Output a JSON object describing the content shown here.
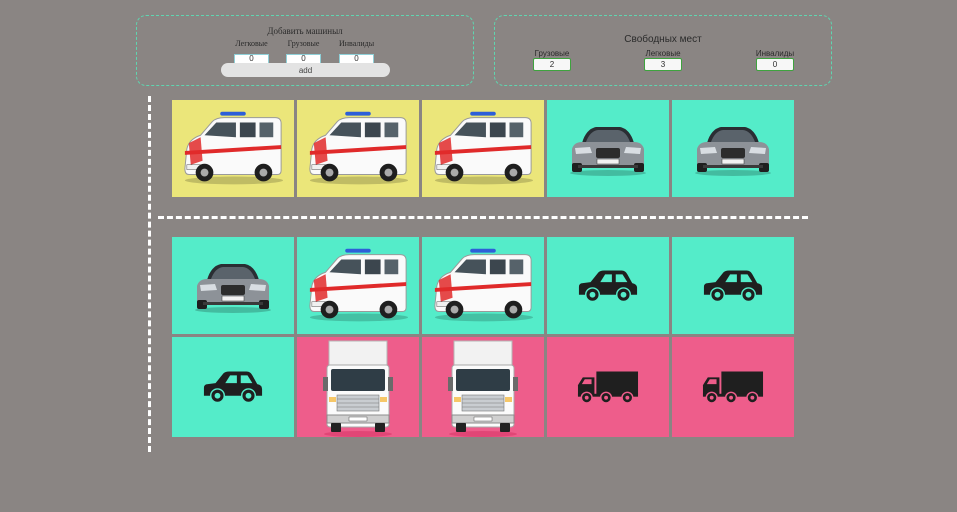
{
  "add_panel": {
    "title": "Добавить машиныл",
    "fields": [
      {
        "label": "Легковые",
        "value": "0"
      },
      {
        "label": "Грузовые",
        "value": "0"
      },
      {
        "label": "Инвалиды",
        "value": "0"
      }
    ],
    "add_label": "add"
  },
  "free_panel": {
    "title": "Свободных мест",
    "stats": [
      {
        "label": "Грузовые",
        "value": "2"
      },
      {
        "label": "Легковые",
        "value": "3"
      },
      {
        "label": "Инвалиды",
        "value": "0"
      }
    ]
  },
  "colors": {
    "background": "#8a8583",
    "disabled_spot": "#ebe67a",
    "car_spot": "#54ecc9",
    "truck_spot": "#ee5d8b",
    "divider": "#ffffff",
    "panel_border": "#5fd6b0"
  },
  "lot": {
    "top_row": [
      {
        "spot": "disabled",
        "content": "ambulance-van-icon"
      },
      {
        "spot": "disabled",
        "content": "ambulance-van-icon"
      },
      {
        "spot": "disabled",
        "content": "ambulance-van-icon"
      },
      {
        "spot": "car",
        "content": "sedan-front-icon"
      },
      {
        "spot": "car",
        "content": "sedan-front-icon"
      }
    ],
    "middle_row": [
      {
        "spot": "car",
        "content": "sedan-front-icon"
      },
      {
        "spot": "car",
        "content": "ambulance-van-icon"
      },
      {
        "spot": "car",
        "content": "ambulance-van-icon"
      },
      {
        "spot": "car",
        "content": "empty-car-icon"
      },
      {
        "spot": "car",
        "content": "empty-car-icon"
      }
    ],
    "bottom_row": [
      {
        "spot": "car",
        "content": "empty-car-icon"
      },
      {
        "spot": "truck",
        "content": "truck-front-icon"
      },
      {
        "spot": "truck",
        "content": "truck-front-icon"
      },
      {
        "spot": "truck",
        "content": "empty-truck-icon"
      },
      {
        "spot": "truck",
        "content": "empty-truck-icon"
      }
    ]
  }
}
